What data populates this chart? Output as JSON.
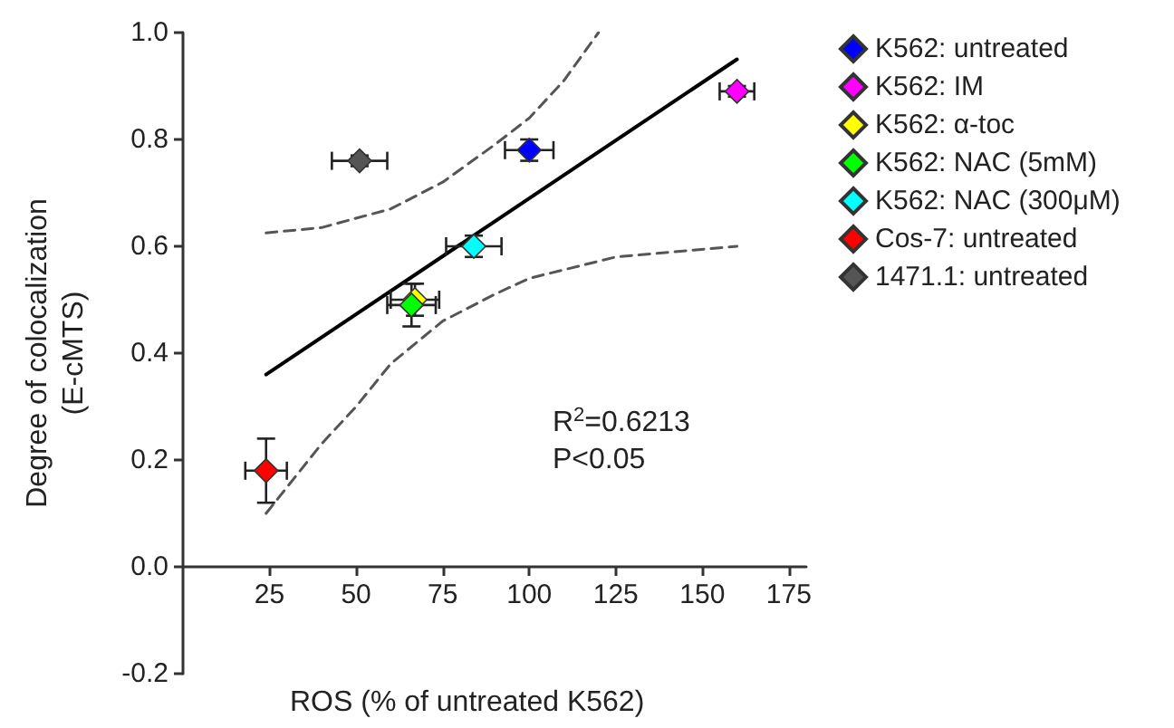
{
  "chart_data": {
    "type": "scatter",
    "xlabel": "ROS (% of untreated K562)",
    "ylabel": "Degree of colocalization\n(E-cMTS)",
    "xlim": [
      0,
      180
    ],
    "xticks": [
      25,
      50,
      75,
      100,
      125,
      150,
      175
    ],
    "ylim": [
      -0.2,
      1.0
    ],
    "yticks": [
      {
        "value": -0.2,
        "label": "-0.2"
      },
      {
        "value": 0,
        "label": "0.0"
      },
      {
        "value": 0.2,
        "label": "0.2"
      },
      {
        "value": 0.4,
        "label": "0.4"
      },
      {
        "value": 0.6,
        "label": "0.6"
      },
      {
        "value": 0.8,
        "label": "0.8"
      },
      {
        "value": 1.0,
        "label": "1.0"
      }
    ],
    "grid": false,
    "legend": "top right",
    "marker": "diamond",
    "annotations": [
      "R$^{2}$=0.6213",
      "P<0.05"
    ],
    "series": [
      {
        "type": "line",
        "color": "#000000",
        "line_style": "solid",
        "marker": "none",
        "x": [
          24,
          160
        ],
        "values": [
          0.36,
          0.95
        ]
      },
      {
        "type": "line",
        "color": "#555555",
        "line_style": "dashed",
        "marker": "none",
        "x": [
          24,
          40,
          60,
          75,
          90,
          100,
          110,
          120
        ],
        "values": [
          0.625,
          0.635,
          0.67,
          0.72,
          0.79,
          0.84,
          0.91,
          1.0
        ]
      },
      {
        "type": "line",
        "color": "#555555",
        "line_style": "dashed",
        "marker": "none",
        "x": [
          24,
          40,
          50,
          60,
          75,
          90,
          100,
          125,
          160
        ],
        "values": [
          0.1,
          0.23,
          0.3,
          0.38,
          0.46,
          0.51,
          0.54,
          0.58,
          0.6
        ]
      },
      {
        "name": "K562: untreated",
        "color": "#0000ff",
        "x": [
          100
        ],
        "values": [
          0.78
        ],
        "errors": [
          0.02
        ],
        "xerrors": [
          7
        ]
      },
      {
        "name": "K562: IM",
        "color": "#ff00ff",
        "x": [
          160
        ],
        "values": [
          0.89
        ],
        "errors": [
          0.01
        ],
        "xerrors": [
          5
        ]
      },
      {
        "name": "K562: α-toc",
        "color": "#ffff00",
        "x": [
          67
        ],
        "values": [
          0.5
        ],
        "errors": [
          0.03
        ],
        "xerrors": [
          7
        ]
      },
      {
        "name": "K562: NAC (5mM)",
        "color": "#00ff00",
        "x": [
          66
        ],
        "values": [
          0.49
        ],
        "errors": [
          0.04
        ],
        "xerrors": [
          7
        ]
      },
      {
        "name": "K562: NAC (300μM)",
        "color": "#00ffff",
        "x": [
          84
        ],
        "values": [
          0.6
        ],
        "errors": [
          0.02
        ],
        "xerrors": [
          8
        ]
      },
      {
        "name": "Cos-7: untreated",
        "color": "#ff0000",
        "x": [
          24
        ],
        "values": [
          0.18
        ],
        "errors": [
          0.06
        ],
        "xerrors": [
          6
        ]
      },
      {
        "name": "1471.1: untreated",
        "color": "#555555",
        "x": [
          51
        ],
        "values": [
          0.76
        ],
        "errors": [
          0.01
        ],
        "xerrors": [
          8
        ]
      }
    ]
  }
}
